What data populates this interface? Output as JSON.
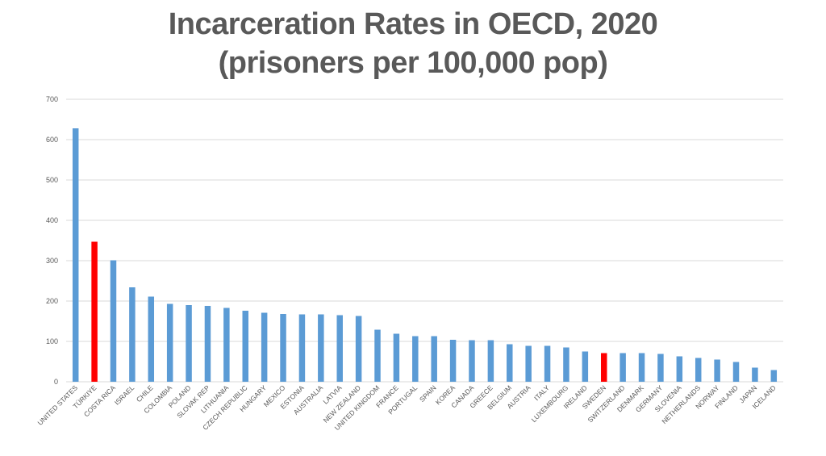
{
  "chart_data": {
    "type": "bar",
    "title": "Incarceration Rates in OECD, 2020",
    "subtitle": "(prisoners per 100,000 pop)",
    "xlabel": "",
    "ylabel": "",
    "ylim": [
      0,
      700
    ],
    "yticks": [
      0,
      100,
      200,
      300,
      400,
      500,
      600,
      700
    ],
    "grid": true,
    "legend": "none",
    "colors": {
      "default": "#5b9bd5",
      "highlight": "#ff0000"
    },
    "highlighted": [
      "TÜRKIYE",
      "SWEDEN"
    ],
    "categories": [
      "UNITED STATES",
      "TÜRKIYE",
      "COSTA RICA",
      "ISRAEL",
      "CHILE",
      "COLOMBIA",
      "POLAND",
      "SLOVAK REP",
      "LITHUANIA",
      "CZECH REPUBLIC",
      "HUNGARY",
      "MEXICO",
      "ESTONIA",
      "AUSTRALIA",
      "LATVIA",
      "NEW ZEALAND",
      "UNITED KINGDOM",
      "FRANCE",
      "PORTUGAL",
      "SPAIN",
      "KOREA",
      "CANADA",
      "GREECE",
      "BELGIUM",
      "AUSTRIA",
      "ITALY",
      "LUXEMBOURG",
      "IRELAND",
      "SWEDEN",
      "SWITZERLAND",
      "DENMARK",
      "GERMANY",
      "SLOVENIA",
      "NETHERLANDS",
      "NORWAY",
      "FINLAND",
      "JAPAN",
      "ICELAND"
    ],
    "values": [
      628,
      347,
      301,
      234,
      211,
      193,
      190,
      188,
      183,
      176,
      171,
      168,
      167,
      167,
      165,
      163,
      129,
      119,
      113,
      113,
      104,
      103,
      103,
      93,
      89,
      89,
      85,
      75,
      71,
      71,
      71,
      69,
      63,
      59,
      55,
      49,
      35,
      29
    ]
  }
}
